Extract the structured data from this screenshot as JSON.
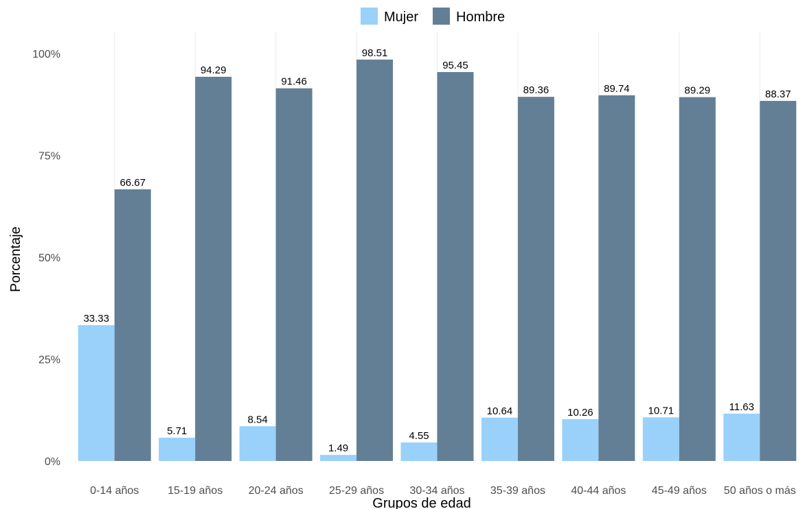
{
  "chart_data": {
    "type": "bar",
    "xlabel": "Grupos de edad",
    "ylabel": "Porcentaje",
    "categories": [
      "0-14 años",
      "15-19 años",
      "20-24 años",
      "25-29 años",
      "30-34 años",
      "35-39 años",
      "40-44 años",
      "45-49 años",
      "50 años o más"
    ],
    "series": [
      {
        "name": "Mujer",
        "color": "#99d1fa",
        "values": [
          33.33,
          5.71,
          8.54,
          1.49,
          4.55,
          10.64,
          10.26,
          10.71,
          11.63
        ],
        "labels": [
          "33.33",
          "5.71",
          "8.54",
          "1.49",
          "4.55",
          "10.64",
          "10.26",
          "10.71",
          "11.63"
        ]
      },
      {
        "name": "Hombre",
        "color": "#637f96",
        "values": [
          66.67,
          94.29,
          91.46,
          98.51,
          95.45,
          89.36,
          89.74,
          89.29,
          88.37
        ],
        "labels": [
          "66.67",
          "94.29",
          "91.46",
          "98.51",
          "95.45",
          "89.36",
          "89.74",
          "89.29",
          "88.37"
        ]
      }
    ],
    "ylim": [
      0,
      100
    ],
    "yticks": [
      0,
      25,
      50,
      75,
      100
    ],
    "ytick_labels": [
      "0%",
      "25%",
      "50%",
      "75%",
      "100%"
    ],
    "grid": "vertical",
    "legend_position": "top"
  }
}
